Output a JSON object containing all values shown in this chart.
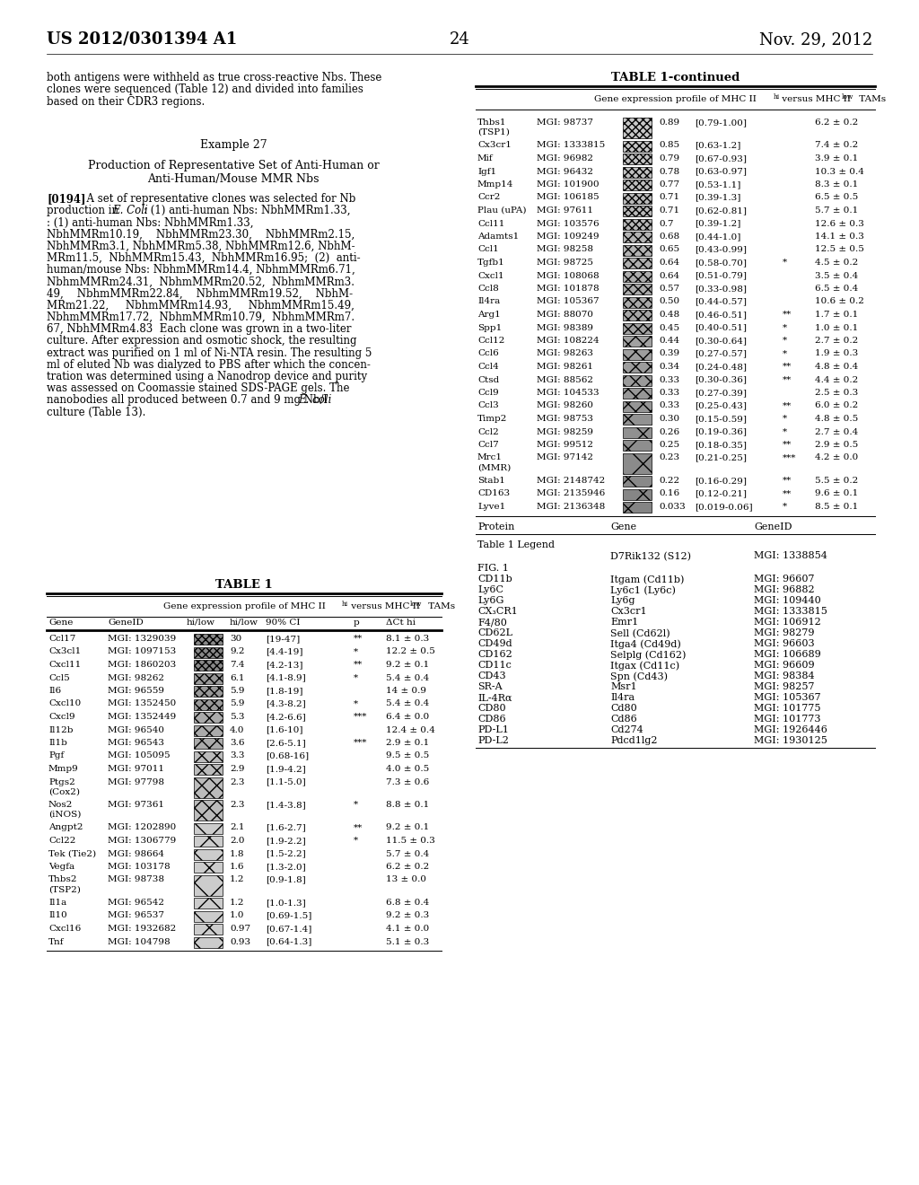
{
  "header_left": "US 2012/0301394 A1",
  "header_right": "Nov. 29, 2012",
  "page_number": "24",
  "left_text_paragraphs": [
    "both antigens were withheld as true cross-reactive Nbs. These",
    "clones were sequenced (Table 12) and divided into families",
    "based on their CDR3 regions."
  ],
  "example_title": "Example 27",
  "production_title_line1": "Production of Representative Set of Anti-Human or",
  "production_title_line2": "Anti-Human/Mouse MMR Nbs",
  "table1_title": "TABLE 1",
  "table1cont_title": "TABLE 1-continued",
  "table1_rows": [
    [
      "Ccl17",
      "MGI: 1329039",
      "30",
      "[19-47]",
      "**",
      "8.1 ± 0.3"
    ],
    [
      "Cx3cl1",
      "MGI: 1097153",
      "9.2",
      "[4.4-19]",
      "*",
      "12.2 ± 0.5"
    ],
    [
      "Cxcl11",
      "MGI: 1860203",
      "7.4",
      "[4.2-13]",
      "**",
      "9.2 ± 0.1"
    ],
    [
      "Ccl5",
      "MGI: 98262",
      "6.1",
      "[4.1-8.9]",
      "*",
      "5.4 ± 0.4"
    ],
    [
      "Il6",
      "MGI: 96559",
      "5.9",
      "[1.8-19]",
      "",
      "14 ± 0.9"
    ],
    [
      "Cxcl10",
      "MGI: 1352450",
      "5.9",
      "[4.3-8.2]",
      "*",
      "5.4 ± 0.4"
    ],
    [
      "Cxcl9",
      "MGI: 1352449",
      "5.3",
      "[4.2-6.6]",
      "***",
      "6.4 ± 0.0"
    ],
    [
      "Il12b",
      "MGI: 96540",
      "4.0",
      "[1.6-10]",
      "",
      "12.4 ± 0.4"
    ],
    [
      "Il1b",
      "MGI: 96543",
      "3.6",
      "[2.6-5.1]",
      "***",
      "2.9 ± 0.1"
    ],
    [
      "Pgf",
      "MGI: 105095",
      "3.3",
      "[0.68-16]",
      "",
      "9.5 ± 0.5"
    ],
    [
      "Mmp9",
      "MGI: 97011",
      "2.9",
      "[1.9-4.2]",
      "",
      "4.0 ± 0.5"
    ],
    [
      "Ptgs2\n(Cox2)",
      "MGI: 97798",
      "2.3",
      "[1.1-5.0]",
      "",
      "7.3 ± 0.6"
    ],
    [
      "Nos2\n(iNOS)",
      "MGI: 97361",
      "2.3",
      "[1.4-3.8]",
      "*",
      "8.8 ± 0.1"
    ],
    [
      "Angpt2",
      "MGI: 1202890",
      "2.1",
      "[1.6-2.7]",
      "**",
      "9.2 ± 0.1"
    ],
    [
      "Ccl22",
      "MGI: 1306779",
      "2.0",
      "[1.9-2.2]",
      "*",
      "11.5 ± 0.3"
    ],
    [
      "Tek (Tie2)",
      "MGI: 98664",
      "1.8",
      "[1.5-2.2]",
      "",
      "5.7 ± 0.4"
    ],
    [
      "Vegfa",
      "MGI: 103178",
      "1.6",
      "[1.3-2.0]",
      "",
      "6.2 ± 0.2"
    ],
    [
      "Thbs2\n(TSP2)",
      "MGI: 98738",
      "1.2",
      "[0.9-1.8]",
      "",
      "13 ± 0.0"
    ],
    [
      "Il1a",
      "MGI: 96542",
      "1.2",
      "[1.0-1.3]",
      "",
      "6.8 ± 0.4"
    ],
    [
      "Il10",
      "MGI: 96537",
      "1.0",
      "[0.69-1.5]",
      "",
      "9.2 ± 0.3"
    ],
    [
      "Cxcl16",
      "MGI: 1932682",
      "0.97",
      "[0.67-1.4]",
      "",
      "4.1 ± 0.0"
    ],
    [
      "Tnf",
      "MGI: 104798",
      "0.93",
      "[0.64-1.3]",
      "",
      "5.1 ± 0.3"
    ]
  ],
  "table1cont_rows": [
    [
      "Thbs1\n(TSP1)",
      "MGI: 98737",
      "0.89",
      "[0.79-1.00]",
      "",
      "6.2 ± 0.2"
    ],
    [
      "Cx3cr1",
      "MGI: 1333815",
      "0.85",
      "[0.63-1.2]",
      "",
      "7.4 ± 0.2"
    ],
    [
      "Mif",
      "MGI: 96982",
      "0.79",
      "[0.67-0.93]",
      "",
      "3.9 ± 0.1"
    ],
    [
      "Igf1",
      "MGI: 96432",
      "0.78",
      "[0.63-0.97]",
      "",
      "10.3 ± 0.4"
    ],
    [
      "Mmp14",
      "MGI: 101900",
      "0.77",
      "[0.53-1.1]",
      "",
      "8.3 ± 0.1"
    ],
    [
      "Ccr2",
      "MGI: 106185",
      "0.71",
      "[0.39-1.3]",
      "",
      "6.5 ± 0.5"
    ],
    [
      "Plau (uPA)",
      "MGI: 97611",
      "0.71",
      "[0.62-0.81]",
      "",
      "5.7 ± 0.1"
    ],
    [
      "Ccl11",
      "MGI: 103576",
      "0.7",
      "[0.39-1.2]",
      "",
      "12.6 ± 0.3"
    ],
    [
      "Adamts1",
      "MGI: 109249",
      "0.68",
      "[0.44-1.0]",
      "",
      "14.1 ± 0.3"
    ],
    [
      "Ccl1",
      "MGI: 98258",
      "0.65",
      "[0.43-0.99]",
      "",
      "12.5 ± 0.5"
    ],
    [
      "Tgfb1",
      "MGI: 98725",
      "0.64",
      "[0.58-0.70]",
      "*",
      "4.5 ± 0.2"
    ],
    [
      "Cxcl1",
      "MGI: 108068",
      "0.64",
      "[0.51-0.79]",
      "",
      "3.5 ± 0.4"
    ],
    [
      "Ccl8",
      "MGI: 101878",
      "0.57",
      "[0.33-0.98]",
      "",
      "6.5 ± 0.4"
    ],
    [
      "Il4ra",
      "MGI: 105367",
      "0.50",
      "[0.44-0.57]",
      "",
      "10.6 ± 0.2"
    ],
    [
      "Arg1",
      "MGI: 88070",
      "0.48",
      "[0.46-0.51]",
      "**",
      "1.7 ± 0.1"
    ],
    [
      "Spp1",
      "MGI: 98389",
      "0.45",
      "[0.40-0.51]",
      "*",
      "1.0 ± 0.1"
    ],
    [
      "Ccl12",
      "MGI: 108224",
      "0.44",
      "[0.30-0.64]",
      "*",
      "2.7 ± 0.2"
    ],
    [
      "Ccl6",
      "MGI: 98263",
      "0.39",
      "[0.27-0.57]",
      "*",
      "1.9 ± 0.3"
    ],
    [
      "Ccl4",
      "MGI: 98261",
      "0.34",
      "[0.24-0.48]",
      "**",
      "4.8 ± 0.4"
    ],
    [
      "Ctsd",
      "MGI: 88562",
      "0.33",
      "[0.30-0.36]",
      "**",
      "4.4 ± 0.2"
    ],
    [
      "Ccl9",
      "MGI: 104533",
      "0.33",
      "[0.27-0.39]",
      "",
      "2.5 ± 0.3"
    ],
    [
      "Ccl3",
      "MGI: 98260",
      "0.33",
      "[0.25-0.43]",
      "**",
      "6.0 ± 0.2"
    ],
    [
      "Timp2",
      "MGI: 98753",
      "0.30",
      "[0.15-0.59]",
      "*",
      "4.8 ± 0.5"
    ],
    [
      "Ccl2",
      "MGI: 98259",
      "0.26",
      "[0.19-0.36]",
      "*",
      "2.7 ± 0.4"
    ],
    [
      "Ccl7",
      "MGI: 99512",
      "0.25",
      "[0.18-0.35]",
      "**",
      "2.9 ± 0.5"
    ],
    [
      "Mrc1\n(MMR)",
      "MGI: 97142",
      "0.23",
      "[0.21-0.25]",
      "***",
      "4.2 ± 0.0"
    ],
    [
      "Stab1",
      "MGI: 2148742",
      "0.22",
      "[0.16-0.29]",
      "**",
      "5.5 ± 0.2"
    ],
    [
      "CD163",
      "MGI: 2135946",
      "0.16",
      "[0.12-0.21]",
      "**",
      "9.6 ± 0.1"
    ],
    [
      "Lyve1",
      "MGI: 2136348",
      "0.033",
      "[0.019-0.06]",
      "*",
      "8.5 ± 0.1"
    ]
  ],
  "cd_rows": [
    [
      "CD11b",
      "Itgam (Cd11b)",
      "MGI: 96607"
    ],
    [
      "Ly6C",
      "Ly6c1 (Ly6c)",
      "MGI: 96882"
    ],
    [
      "Ly6G",
      "Ly6g",
      "MGI: 109440"
    ],
    [
      "CX₃CR1",
      "Cx3cr1",
      "MGI: 1333815"
    ],
    [
      "F4/80",
      "Emr1",
      "MGI: 106912"
    ],
    [
      "CD62L",
      "Sell (Cd62l)",
      "MGI: 98279"
    ],
    [
      "CD49d",
      "Itga4 (Cd49d)",
      "MGI: 96603"
    ],
    [
      "CD162",
      "Selplg (Cd162)",
      "MGI: 106689"
    ],
    [
      "CD11c",
      "Itgax (Cd11c)",
      "MGI: 96609"
    ],
    [
      "CD43",
      "Spn (Cd43)",
      "MGI: 98384"
    ],
    [
      "SR-A",
      "Msr1",
      "MGI: 98257"
    ],
    [
      "IL-4Rα",
      "Il4ra",
      "MGI: 105367"
    ],
    [
      "CD80",
      "Cd80",
      "MGI: 101775"
    ],
    [
      "CD86",
      "Cd86",
      "MGI: 101773"
    ],
    [
      "PD-L1",
      "Cd274",
      "MGI: 1926446"
    ],
    [
      "PD-L2",
      "Pdcd1lg2",
      "MGI: 1930125"
    ]
  ]
}
